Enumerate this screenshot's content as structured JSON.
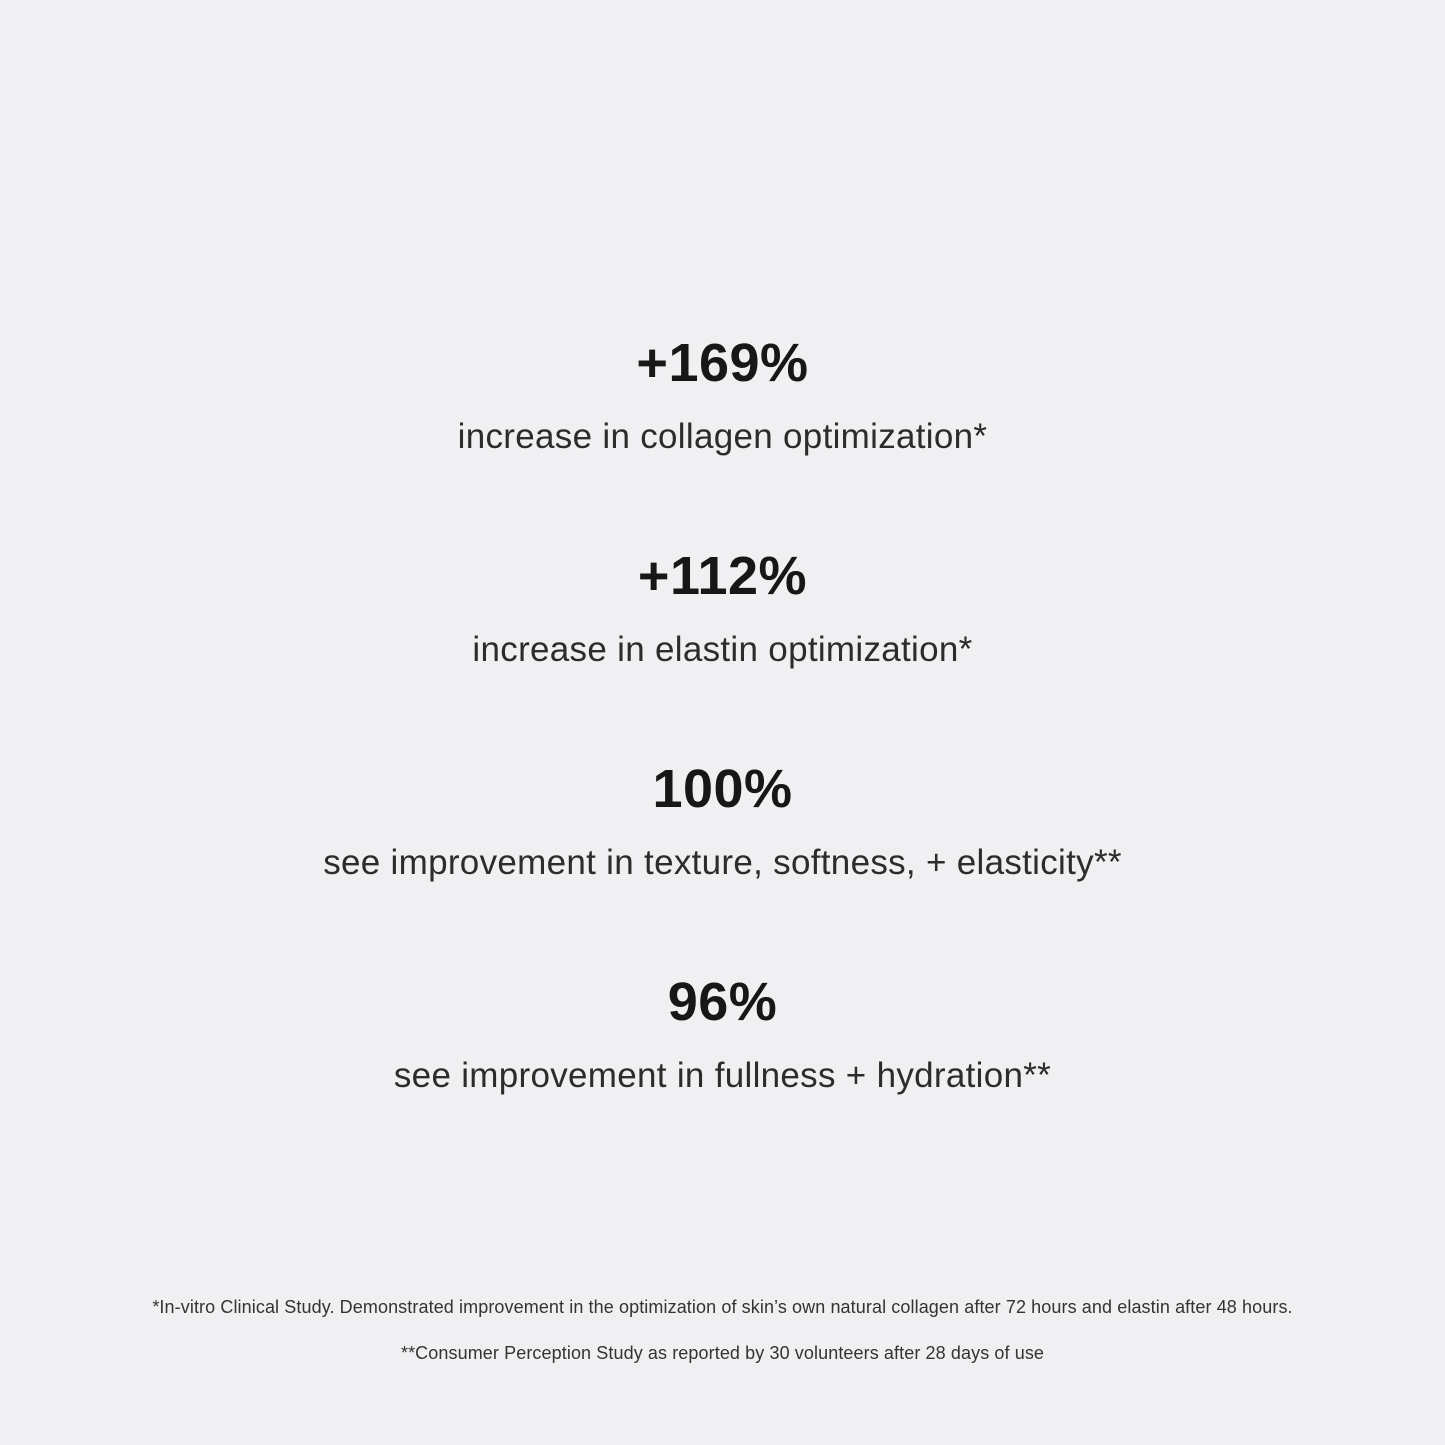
{
  "canvas": {
    "background": "#F0F0F2",
    "value_color": "#171717",
    "label_color": "#2C2C2C",
    "footnote_color": "#333333"
  },
  "stats": [
    {
      "value": "+169%",
      "label": "increase in collagen optimization*"
    },
    {
      "value": "+112%",
      "label": "increase in elastin optimization*"
    },
    {
      "value": "100%",
      "label": "see improvement in texture, softness, + elasticity**"
    },
    {
      "value": "96%",
      "label": "see improvement in fullness + hydration**"
    }
  ],
  "footnotes": [
    "*In-vitro Clinical Study. Demonstrated improvement in the optimization of skin’s own natural collagen after 72 hours and elastin after 48 hours.",
    "**Consumer Perception Study as reported by 30 volunteers after 28 days of use"
  ]
}
